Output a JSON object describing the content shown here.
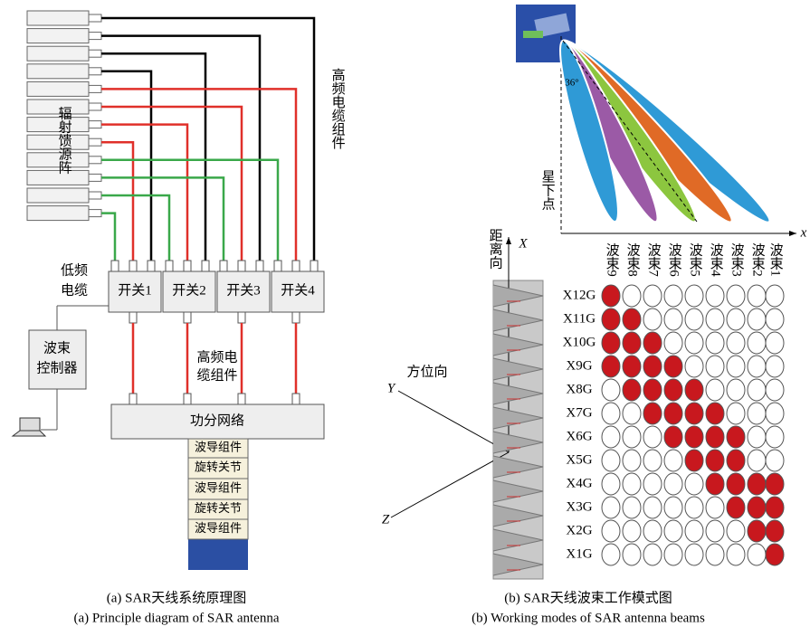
{
  "left": {
    "feed_array": "辐射馈源阵",
    "hf_cable_top": "高频电缆组件",
    "lf_cable": [
      "低频",
      "电缆"
    ],
    "switches": [
      "开关1",
      "开关2",
      "开关3",
      "开关4"
    ],
    "hf_cable_mid": [
      "高频电",
      "缆组件"
    ],
    "controller": [
      "波束",
      "控制器"
    ],
    "power_network": "功分网络",
    "stack": [
      "波导组件",
      "旋转关节",
      "波导组件",
      "旋转关节",
      "波导组件"
    ],
    "caption": [
      "(a) SAR天线系统原理图",
      "(a) Principle diagram of SAR antenna"
    ]
  },
  "right": {
    "angle": "36°",
    "nadir": "星下点",
    "x_axis": "x",
    "X_axis": "X",
    "range": "距离向",
    "Y_axis": "Y",
    "azimuth": "方位向",
    "Z_axis": "Z",
    "beams": [
      "波束9",
      "波束8",
      "波束7",
      "波束6",
      "波束5",
      "波束4",
      "波束3",
      "波束2",
      "波束1"
    ],
    "rows": [
      "X12G",
      "X11G",
      "X10G",
      "X9G",
      "X8G",
      "X7G",
      "X6G",
      "X5G",
      "X4G",
      "X3G",
      "X2G",
      "X1G"
    ],
    "caption": [
      "(b) SAR天线波束工作模式图",
      "(b) Working modes of SAR antenna beams"
    ]
  }
}
